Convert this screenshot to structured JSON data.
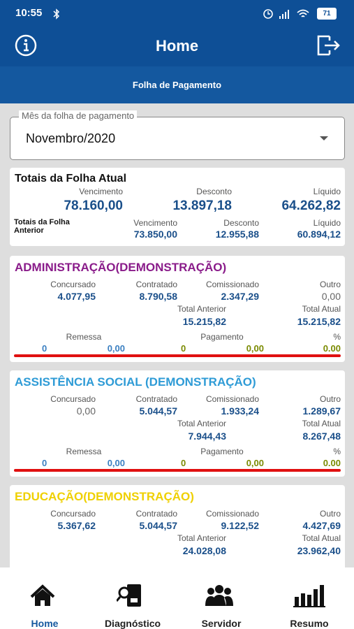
{
  "status_bar": {
    "time": "10:55",
    "battery": "71"
  },
  "header": {
    "title": "Home"
  },
  "subheader": {
    "title": "Folha de Pagamento"
  },
  "month_select": {
    "label": "Mês da folha de pagamento",
    "value": "Novembro/2020"
  },
  "totals": {
    "title": "Totais da Folha Atual",
    "current": [
      {
        "label": "Vencimento",
        "value": "78.160,00"
      },
      {
        "label": "Desconto",
        "value": "13.897,18"
      },
      {
        "label": "Líquido",
        "value": "64.262,82"
      }
    ],
    "previous_title": "Totais da Folha Anterior",
    "previous": [
      {
        "label": "Vencimento",
        "value": "73.850,00"
      },
      {
        "label": "Desconto",
        "value": "12.955,88"
      },
      {
        "label": "Líquido",
        "value": "60.894,12"
      }
    ]
  },
  "departments": [
    {
      "name": "ADMINISTRAÇÃO(DEMONSTRAÇÃO)",
      "color": "#8a1c8a",
      "columns": [
        {
          "label": "Concursado",
          "value": "4.077,95"
        },
        {
          "label": "Contratado",
          "value": "8.790,58"
        },
        {
          "label": "Comissionado",
          "value": "2.347,29"
        },
        {
          "label": "Outro",
          "value": "0,00"
        }
      ],
      "totals": [
        {
          "label": "Total Anterior",
          "value": "15.215,82"
        },
        {
          "label": "Total Atual",
          "value": "15.215,82"
        }
      ],
      "remessa": {
        "label": "Remessa",
        "count": "0",
        "value": "0,00"
      },
      "pagamento": {
        "label": "Pagamento",
        "count": "0",
        "value": "0,00"
      },
      "percent": {
        "label": "%",
        "value": "0.00"
      }
    },
    {
      "name": "ASSISTÊNCIA SOCIAL (DEMONSTRAÇÃO)",
      "color": "#2e9bd6",
      "columns": [
        {
          "label": "Concursado",
          "value": "0,00"
        },
        {
          "label": "Contratado",
          "value": "5.044,57"
        },
        {
          "label": "Comissionado",
          "value": "1.933,24"
        },
        {
          "label": "Outro",
          "value": "1.289,67"
        }
      ],
      "totals": [
        {
          "label": "Total Anterior",
          "value": "7.944,43"
        },
        {
          "label": "Total Atual",
          "value": "8.267,48"
        }
      ],
      "remessa": {
        "label": "Remessa",
        "count": "0",
        "value": "0,00"
      },
      "pagamento": {
        "label": "Pagamento",
        "count": "0",
        "value": "0,00"
      },
      "percent": {
        "label": "%",
        "value": "0.00"
      }
    },
    {
      "name": "EDUCAÇÃO(DEMONSTRAÇÃO)",
      "color": "#efd000",
      "columns": [
        {
          "label": "Concursado",
          "value": "5.367,62"
        },
        {
          "label": "Contratado",
          "value": "5.044,57"
        },
        {
          "label": "Comissionado",
          "value": "9.122,52"
        },
        {
          "label": "Outro",
          "value": "4.427,69"
        }
      ],
      "totals": [
        {
          "label": "Total Anterior",
          "value": "24.028,08"
        },
        {
          "label": "Total Atual",
          "value": "23.962,40"
        }
      ]
    }
  ],
  "nav": [
    {
      "label": "Home"
    },
    {
      "label": "Diagnóstico"
    },
    {
      "label": "Servidor"
    },
    {
      "label": "Resumo"
    }
  ]
}
